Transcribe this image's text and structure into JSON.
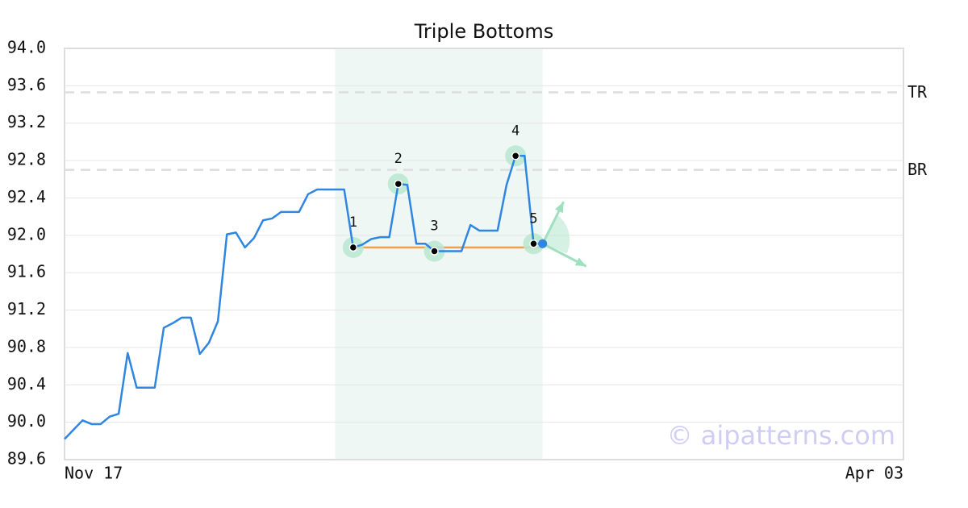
{
  "chart_data": {
    "type": "line",
    "title": "Triple Bottoms",
    "x": [
      0,
      1,
      2,
      3,
      4,
      5,
      6,
      7,
      8,
      9,
      10,
      11,
      12,
      13,
      14,
      15,
      16,
      17,
      18,
      19,
      20,
      21,
      22,
      23,
      24,
      25,
      26,
      27,
      28,
      29,
      30,
      31,
      32,
      33,
      34,
      35,
      36,
      37,
      38,
      39,
      40,
      41,
      42,
      43,
      44,
      45,
      46,
      47,
      48,
      49,
      50,
      51,
      52,
      53
    ],
    "series": [
      {
        "color": "#2f86e0",
        "values": [
          89.82,
          89.92,
          90.02,
          89.98,
          89.98,
          90.06,
          90.09,
          90.74,
          90.37,
          90.37,
          90.37,
          91.01,
          91.06,
          91.12,
          91.12,
          90.73,
          90.85,
          91.08,
          92.01,
          92.03,
          91.87,
          91.97,
          92.16,
          92.18,
          92.25,
          92.25,
          92.25,
          92.44,
          92.49,
          92.49,
          92.49,
          92.49,
          91.87,
          91.9,
          91.96,
          91.98,
          91.98,
          92.55,
          92.54,
          91.91,
          91.91,
          91.83,
          91.83,
          91.83,
          91.83,
          92.11,
          92.05,
          92.05,
          92.05,
          92.54,
          92.85,
          92.85,
          91.91,
          91.91
        ]
      }
    ],
    "xlim": [
      0,
      93
    ],
    "xticks": [
      {
        "value": 0,
        "label": "Nov 17"
      },
      {
        "value": 93,
        "label": "Apr 03"
      }
    ],
    "ylim": [
      89.6,
      94.0
    ],
    "yticks": [
      89.6,
      {
        "value": 90,
        "label": "90.0"
      },
      90.4,
      90.8,
      91.2,
      91.6,
      {
        "value": 92,
        "label": "92.0"
      },
      92.4,
      92.8,
      93.2,
      93.6,
      {
        "value": 94,
        "label": "94.0"
      }
    ],
    "grid": true,
    "levels": [
      {
        "label": "TR",
        "value": 93.53
      },
      {
        "label": "BR",
        "value": 92.7
      }
    ],
    "pattern": {
      "region": [
        30,
        53
      ],
      "points": [
        {
          "label": "1",
          "x": 32
        },
        {
          "label": "2",
          "x": 37
        },
        {
          "label": "3",
          "x": 41
        },
        {
          "label": "4",
          "x": 50
        },
        {
          "label": "5",
          "x": 52
        }
      ],
      "support": {
        "x": [
          32,
          53
        ],
        "value": 91.87,
        "color": "#f4a04a"
      }
    },
    "watermark": "© aipatterns.com"
  }
}
